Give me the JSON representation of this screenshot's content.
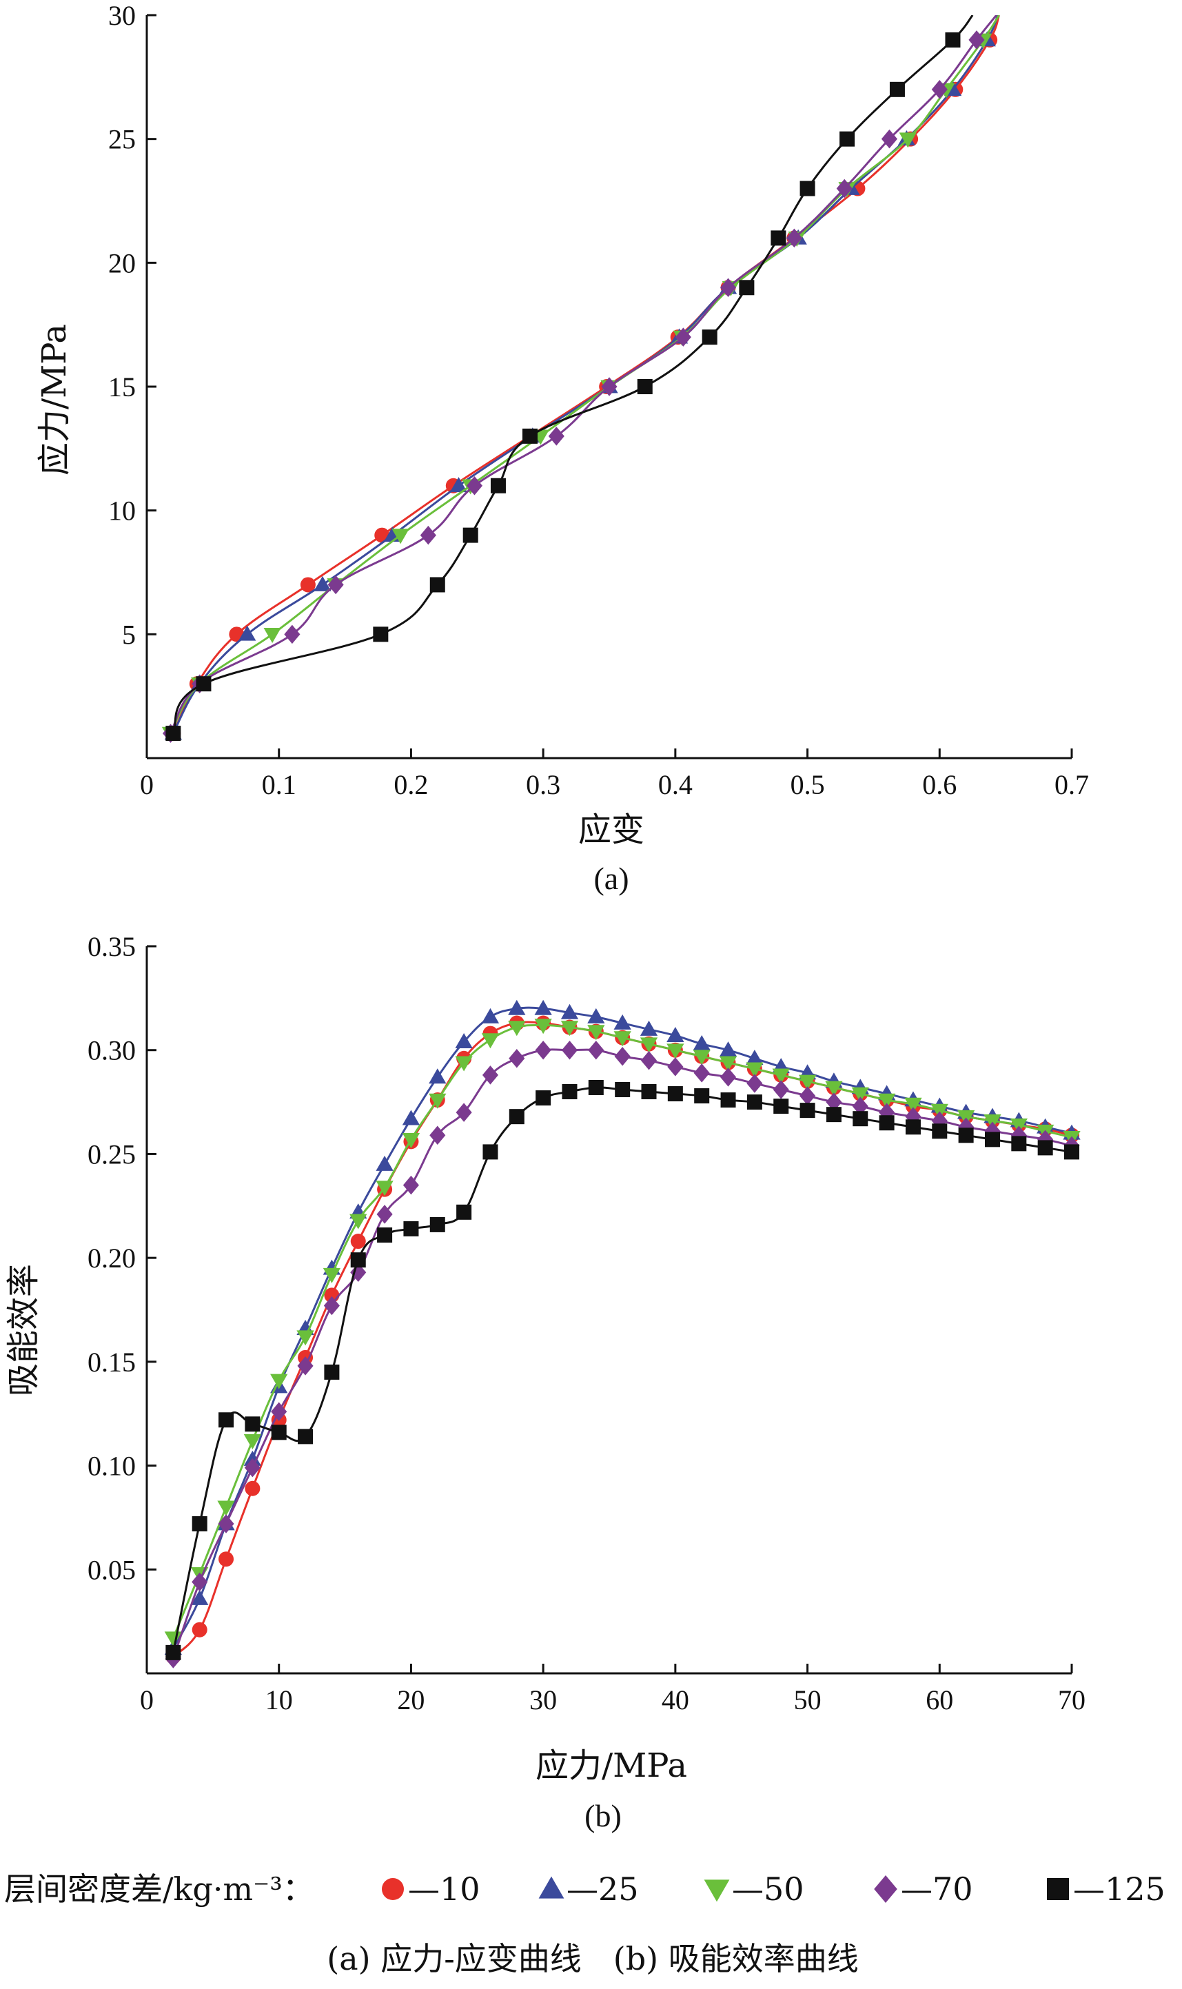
{
  "chart_data": [
    {
      "id": "a",
      "type": "line",
      "xlabel": "应变",
      "ylabel": "应力/MPa",
      "panel_label": "(a)",
      "xlim": [
        0,
        0.7
      ],
      "ylim": [
        0,
        30
      ],
      "xticks": [
        "0",
        "0.1",
        "0.2",
        "0.3",
        "0.4",
        "0.5",
        "0.6",
        "0.7"
      ],
      "yticks": [
        "5",
        "10",
        "15",
        "20",
        "25",
        "30"
      ],
      "xtick_values": [
        0,
        0.1,
        0.2,
        0.3,
        0.4,
        0.5,
        0.6,
        0.7
      ],
      "ytick_values": [
        5,
        10,
        15,
        20,
        25,
        30
      ],
      "series": [
        {
          "name": "10",
          "x": [
            0.02,
            0.038,
            0.068,
            0.122,
            0.178,
            0.232,
            0.29,
            0.348,
            0.402,
            0.44,
            0.49,
            0.538,
            0.578,
            0.612,
            0.638,
            0.645
          ],
          "y": [
            1,
            3,
            5,
            7,
            9,
            11,
            13,
            15,
            17,
            19,
            21,
            23,
            25,
            27,
            29,
            30
          ]
        },
        {
          "name": "25",
          "x": [
            0.02,
            0.04,
            0.076,
            0.133,
            0.186,
            0.236,
            0.292,
            0.35,
            0.403,
            0.44,
            0.493,
            0.533,
            0.575,
            0.61,
            0.636,
            0.644
          ],
          "y": [
            1,
            3,
            5,
            7,
            9,
            11,
            13,
            15,
            17,
            19,
            21,
            23,
            25,
            27,
            29,
            30
          ]
        },
        {
          "name": "50",
          "x": [
            0.018,
            0.04,
            0.095,
            0.143,
            0.192,
            0.245,
            0.298,
            0.35,
            0.405,
            0.442,
            0.492,
            0.53,
            0.576,
            0.605,
            0.633,
            0.645
          ],
          "y": [
            1,
            3,
            5,
            7,
            9,
            11,
            13,
            15,
            17,
            19,
            21,
            23,
            25,
            27,
            29,
            30
          ]
        },
        {
          "name": "70",
          "x": [
            0.018,
            0.04,
            0.11,
            0.143,
            0.213,
            0.248,
            0.31,
            0.35,
            0.406,
            0.44,
            0.49,
            0.528,
            0.562,
            0.6,
            0.628,
            0.643
          ],
          "y": [
            1,
            3,
            5,
            7,
            9,
            11,
            13,
            15,
            17,
            19,
            21,
            23,
            25,
            27,
            29,
            30
          ]
        },
        {
          "name": "125",
          "x": [
            0.02,
            0.043,
            0.177,
            0.22,
            0.245,
            0.266,
            0.29,
            0.377,
            0.426,
            0.454,
            0.478,
            0.5,
            0.53,
            0.568,
            0.61,
            0.625
          ],
          "y": [
            1,
            3,
            5,
            7,
            9,
            11,
            13,
            15,
            17,
            19,
            21,
            23,
            25,
            27,
            29,
            30
          ]
        }
      ]
    },
    {
      "id": "b",
      "type": "line",
      "xlabel": "应力/MPa",
      "ylabel": "吸能效率",
      "panel_label": "(b)",
      "xlim": [
        0,
        70
      ],
      "ylim": [
        0,
        0.35
      ],
      "xticks": [
        "0",
        "10",
        "20",
        "30",
        "40",
        "50",
        "60",
        "70"
      ],
      "yticks": [
        "0.05",
        "0.10",
        "0.15",
        "0.20",
        "0.25",
        "0.30",
        "0.35"
      ],
      "xtick_values": [
        0,
        10,
        20,
        30,
        40,
        50,
        60,
        70
      ],
      "ytick_values": [
        0.05,
        0.1,
        0.15,
        0.2,
        0.25,
        0.3,
        0.35
      ],
      "x": [
        2,
        4,
        6,
        8,
        10,
        12,
        14,
        16,
        18,
        20,
        22,
        24,
        26,
        28,
        30,
        32,
        34,
        36,
        38,
        40,
        42,
        44,
        46,
        48,
        50,
        52,
        54,
        56,
        58,
        60,
        62,
        64,
        66,
        68,
        70
      ],
      "series": [
        {
          "name": "10",
          "values": [
            0.008,
            0.021,
            0.055,
            0.089,
            0.122,
            0.152,
            0.182,
            0.208,
            0.233,
            0.256,
            0.276,
            0.296,
            0.308,
            0.313,
            0.313,
            0.311,
            0.309,
            0.306,
            0.303,
            0.3,
            0.297,
            0.294,
            0.291,
            0.288,
            0.285,
            0.282,
            0.279,
            0.276,
            0.273,
            0.271,
            0.268,
            0.266,
            0.264,
            0.262,
            0.259
          ]
        },
        {
          "name": "25",
          "values": [
            0.012,
            0.036,
            0.072,
            0.103,
            0.138,
            0.166,
            0.195,
            0.222,
            0.245,
            0.267,
            0.287,
            0.304,
            0.316,
            0.32,
            0.32,
            0.318,
            0.316,
            0.313,
            0.31,
            0.307,
            0.303,
            0.3,
            0.296,
            0.292,
            0.289,
            0.285,
            0.282,
            0.279,
            0.276,
            0.273,
            0.27,
            0.268,
            0.266,
            0.263,
            0.26
          ]
        },
        {
          "name": "50",
          "values": [
            0.017,
            0.048,
            0.08,
            0.112,
            0.141,
            0.162,
            0.192,
            0.218,
            0.234,
            0.257,
            0.276,
            0.294,
            0.305,
            0.311,
            0.312,
            0.311,
            0.309,
            0.306,
            0.303,
            0.3,
            0.297,
            0.294,
            0.291,
            0.288,
            0.285,
            0.282,
            0.279,
            0.276,
            0.274,
            0.271,
            0.268,
            0.266,
            0.264,
            0.261,
            0.258
          ]
        },
        {
          "name": "70",
          "values": [
            0.007,
            0.044,
            0.072,
            0.099,
            0.126,
            0.148,
            0.177,
            0.193,
            0.221,
            0.235,
            0.259,
            0.27,
            0.288,
            0.296,
            0.3,
            0.3,
            0.3,
            0.297,
            0.295,
            0.292,
            0.289,
            0.287,
            0.284,
            0.281,
            0.278,
            0.275,
            0.273,
            0.27,
            0.268,
            0.266,
            0.263,
            0.261,
            0.259,
            0.257,
            0.254
          ]
        },
        {
          "name": "125",
          "values": [
            0.01,
            0.072,
            0.122,
            0.12,
            0.116,
            0.114,
            0.145,
            0.199,
            0.211,
            0.214,
            0.216,
            0.222,
            0.251,
            0.268,
            0.277,
            0.28,
            0.282,
            0.281,
            0.28,
            0.279,
            0.278,
            0.276,
            0.275,
            0.273,
            0.271,
            0.269,
            0.267,
            0.265,
            0.263,
            0.261,
            0.259,
            0.257,
            0.255,
            0.253,
            0.251
          ]
        }
      ]
    }
  ],
  "legend": {
    "prefix": "层间密度差/kg·m⁻³：",
    "items": [
      {
        "label": "—10",
        "marker": "circle",
        "color": "#e8312a"
      },
      {
        "label": "—25",
        "marker": "triangle-up",
        "color": "#3b4a9c"
      },
      {
        "label": "—50",
        "marker": "triangle-down",
        "color": "#6abf3b"
      },
      {
        "label": "—70",
        "marker": "diamond",
        "color": "#7b3a8f"
      },
      {
        "label": "—125",
        "marker": "square",
        "color": "#111111"
      }
    ]
  },
  "caption": "(a) 应力-应变曲线　(b) 吸能效率曲线"
}
